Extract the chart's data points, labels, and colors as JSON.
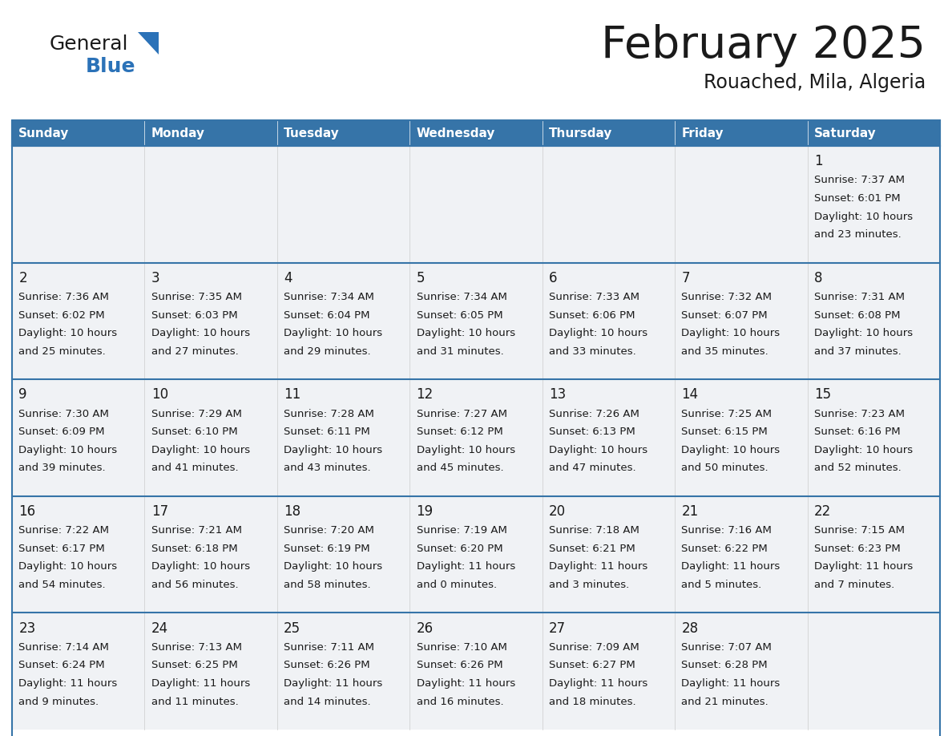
{
  "title": "February 2025",
  "subtitle": "Rouached, Mila, Algeria",
  "days_of_week": [
    "Sunday",
    "Monday",
    "Tuesday",
    "Wednesday",
    "Thursday",
    "Friday",
    "Saturday"
  ],
  "header_bg": "#3674a8",
  "header_text": "#ffffff",
  "cell_bg": "#f0f2f5",
  "cell_bg_white": "#ffffff",
  "border_color": "#3674a8",
  "day_number_color": "#1a1a1a",
  "info_text_color": "#1a1a1a",
  "title_color": "#1a1a1a",
  "subtitle_color": "#1a1a1a",
  "logo_general_color": "#1a1a1a",
  "logo_blue_color": "#2b72b8",
  "calendar": [
    [
      null,
      null,
      null,
      null,
      null,
      null,
      {
        "day": 1,
        "sunrise": "7:37 AM",
        "sunset": "6:01 PM",
        "daylight_h": "10 hours",
        "daylight_m": "and 23 minutes."
      }
    ],
    [
      {
        "day": 2,
        "sunrise": "7:36 AM",
        "sunset": "6:02 PM",
        "daylight_h": "10 hours",
        "daylight_m": "and 25 minutes."
      },
      {
        "day": 3,
        "sunrise": "7:35 AM",
        "sunset": "6:03 PM",
        "daylight_h": "10 hours",
        "daylight_m": "and 27 minutes."
      },
      {
        "day": 4,
        "sunrise": "7:34 AM",
        "sunset": "6:04 PM",
        "daylight_h": "10 hours",
        "daylight_m": "and 29 minutes."
      },
      {
        "day": 5,
        "sunrise": "7:34 AM",
        "sunset": "6:05 PM",
        "daylight_h": "10 hours",
        "daylight_m": "and 31 minutes."
      },
      {
        "day": 6,
        "sunrise": "7:33 AM",
        "sunset": "6:06 PM",
        "daylight_h": "10 hours",
        "daylight_m": "and 33 minutes."
      },
      {
        "day": 7,
        "sunrise": "7:32 AM",
        "sunset": "6:07 PM",
        "daylight_h": "10 hours",
        "daylight_m": "and 35 minutes."
      },
      {
        "day": 8,
        "sunrise": "7:31 AM",
        "sunset": "6:08 PM",
        "daylight_h": "10 hours",
        "daylight_m": "and 37 minutes."
      }
    ],
    [
      {
        "day": 9,
        "sunrise": "7:30 AM",
        "sunset": "6:09 PM",
        "daylight_h": "10 hours",
        "daylight_m": "and 39 minutes."
      },
      {
        "day": 10,
        "sunrise": "7:29 AM",
        "sunset": "6:10 PM",
        "daylight_h": "10 hours",
        "daylight_m": "and 41 minutes."
      },
      {
        "day": 11,
        "sunrise": "7:28 AM",
        "sunset": "6:11 PM",
        "daylight_h": "10 hours",
        "daylight_m": "and 43 minutes."
      },
      {
        "day": 12,
        "sunrise": "7:27 AM",
        "sunset": "6:12 PM",
        "daylight_h": "10 hours",
        "daylight_m": "and 45 minutes."
      },
      {
        "day": 13,
        "sunrise": "7:26 AM",
        "sunset": "6:13 PM",
        "daylight_h": "10 hours",
        "daylight_m": "and 47 minutes."
      },
      {
        "day": 14,
        "sunrise": "7:25 AM",
        "sunset": "6:15 PM",
        "daylight_h": "10 hours",
        "daylight_m": "and 50 minutes."
      },
      {
        "day": 15,
        "sunrise": "7:23 AM",
        "sunset": "6:16 PM",
        "daylight_h": "10 hours",
        "daylight_m": "and 52 minutes."
      }
    ],
    [
      {
        "day": 16,
        "sunrise": "7:22 AM",
        "sunset": "6:17 PM",
        "daylight_h": "10 hours",
        "daylight_m": "and 54 minutes."
      },
      {
        "day": 17,
        "sunrise": "7:21 AM",
        "sunset": "6:18 PM",
        "daylight_h": "10 hours",
        "daylight_m": "and 56 minutes."
      },
      {
        "day": 18,
        "sunrise": "7:20 AM",
        "sunset": "6:19 PM",
        "daylight_h": "10 hours",
        "daylight_m": "and 58 minutes."
      },
      {
        "day": 19,
        "sunrise": "7:19 AM",
        "sunset": "6:20 PM",
        "daylight_h": "11 hours",
        "daylight_m": "and 0 minutes."
      },
      {
        "day": 20,
        "sunrise": "7:18 AM",
        "sunset": "6:21 PM",
        "daylight_h": "11 hours",
        "daylight_m": "and 3 minutes."
      },
      {
        "day": 21,
        "sunrise": "7:16 AM",
        "sunset": "6:22 PM",
        "daylight_h": "11 hours",
        "daylight_m": "and 5 minutes."
      },
      {
        "day": 22,
        "sunrise": "7:15 AM",
        "sunset": "6:23 PM",
        "daylight_h": "11 hours",
        "daylight_m": "and 7 minutes."
      }
    ],
    [
      {
        "day": 23,
        "sunrise": "7:14 AM",
        "sunset": "6:24 PM",
        "daylight_h": "11 hours",
        "daylight_m": "and 9 minutes."
      },
      {
        "day": 24,
        "sunrise": "7:13 AM",
        "sunset": "6:25 PM",
        "daylight_h": "11 hours",
        "daylight_m": "and 11 minutes."
      },
      {
        "day": 25,
        "sunrise": "7:11 AM",
        "sunset": "6:26 PM",
        "daylight_h": "11 hours",
        "daylight_m": "and 14 minutes."
      },
      {
        "day": 26,
        "sunrise": "7:10 AM",
        "sunset": "6:26 PM",
        "daylight_h": "11 hours",
        "daylight_m": "and 16 minutes."
      },
      {
        "day": 27,
        "sunrise": "7:09 AM",
        "sunset": "6:27 PM",
        "daylight_h": "11 hours",
        "daylight_m": "and 18 minutes."
      },
      {
        "day": 28,
        "sunrise": "7:07 AM",
        "sunset": "6:28 PM",
        "daylight_h": "11 hours",
        "daylight_m": "and 21 minutes."
      },
      null
    ]
  ]
}
